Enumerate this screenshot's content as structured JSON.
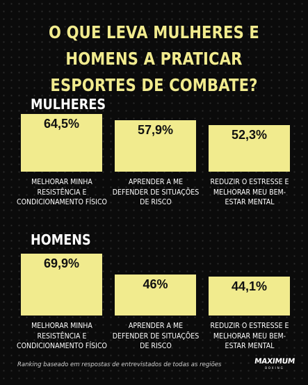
{
  "title": "O QUE LEVA MULHERES E HOMENS A PRATICAR ESPORTES DE COMBATE?",
  "chart_data": [
    {
      "type": "bar",
      "title": "MULHERES",
      "categories": [
        "MELHORAR MINHA RESISTÊNCIA E CONDICIONAMENTO FÍSICO",
        "APRENDER A ME DEFENDER DE SITUAÇÕES DE RISCO",
        "REDUZIR O ESTRESSE E MELHORAR MEU BEM-ESTAR MENTAL"
      ],
      "category_lines": [
        [
          "MELHORAR MINHA",
          "RESISTÊNCIA E",
          "CONDICIONAMENTO FÍSICO"
        ],
        [
          "APRENDER A ME",
          "DEFENDER DE SITUAÇÕES",
          "DE RISCO"
        ],
        [
          "REDUZIR O ESTRESSE E",
          "MELHORAR MEU BEM-",
          "ESTAR MENTAL"
        ]
      ],
      "values": [
        64.5,
        57.9,
        52.3
      ],
      "value_labels": [
        "64,5%",
        "57,9%",
        "52,3%"
      ],
      "unit": "%",
      "bar_color": "#f1eb8e"
    },
    {
      "type": "bar",
      "title": "HOMENS",
      "categories": [
        "MELHORAR MINHA RESISTÊNCIA E CONDICIONAMENTO FÍSICO",
        "APRENDER A ME DEFENDER DE SITUAÇÕES DE RISCO",
        "REDUZIR O ESTRESSE E MELHORAR MEU BEM-ESTAR MENTAL"
      ],
      "category_lines": [
        [
          "MELHORAR MINHA",
          "RESISTÊNCIA E",
          "CONDICIONAMENTO FÍSICO"
        ],
        [
          "APRENDER A ME",
          "DEFENDER DE SITUAÇÕES",
          "DE RISCO"
        ],
        [
          "REDUZIR O ESTRESSE E",
          "MELHORAR MEU BEM-",
          "ESTAR MENTAL"
        ]
      ],
      "values": [
        69.9,
        46,
        44.1
      ],
      "value_labels": [
        "69,9%",
        "46%",
        "44,1%"
      ],
      "unit": "%",
      "bar_color": "#f1eb8e"
    }
  ],
  "footnote": "Ranking baseado em respostas de entrevistados de todas as regiões",
  "logo": {
    "main": "MAXIMUM",
    "sub": "BOXING"
  },
  "colors": {
    "background": "#0b0b0b",
    "accent": "#f1eb8e",
    "text": "#ffffff"
  }
}
